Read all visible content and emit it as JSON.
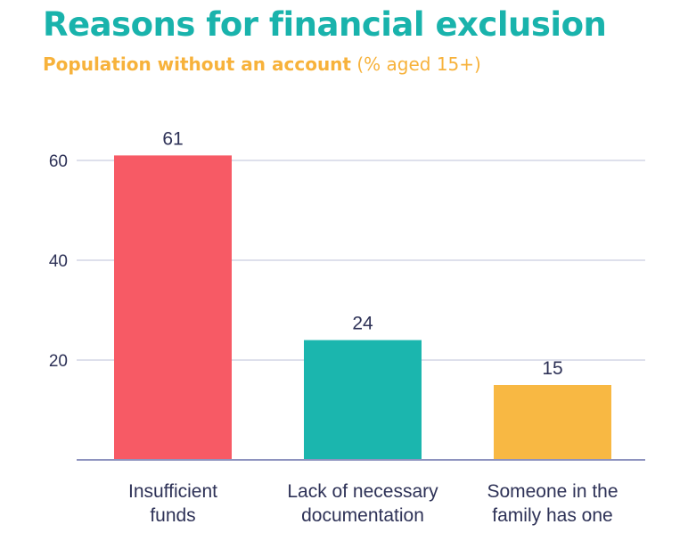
{
  "header": {
    "title": "Reasons for financial exclusion",
    "subtitle_main": "Population without an account",
    "subtitle_suffix": "(% aged 15+)"
  },
  "colors": {
    "title": "#19B3AC",
    "subtitle": "#F7B23B",
    "text": "#2E3257",
    "grid": "#C9CDE0",
    "axis": "#8E93BF"
  },
  "chart_data": {
    "type": "bar",
    "categories": [
      [
        "Insufficient",
        "funds"
      ],
      [
        "Lack of necessary",
        "documentation"
      ],
      [
        "Someone in the",
        "family has one"
      ]
    ],
    "values": [
      61,
      24,
      15
    ],
    "value_labels": [
      "61",
      "24",
      "15"
    ],
    "bar_colors": [
      "#F75A65",
      "#1BB6AE",
      "#F8B843"
    ],
    "yticks": [
      20,
      40,
      60
    ],
    "ylim": [
      0,
      60
    ],
    "grid": true,
    "title": "Reasons for financial exclusion",
    "xlabel": "",
    "ylabel": ""
  }
}
